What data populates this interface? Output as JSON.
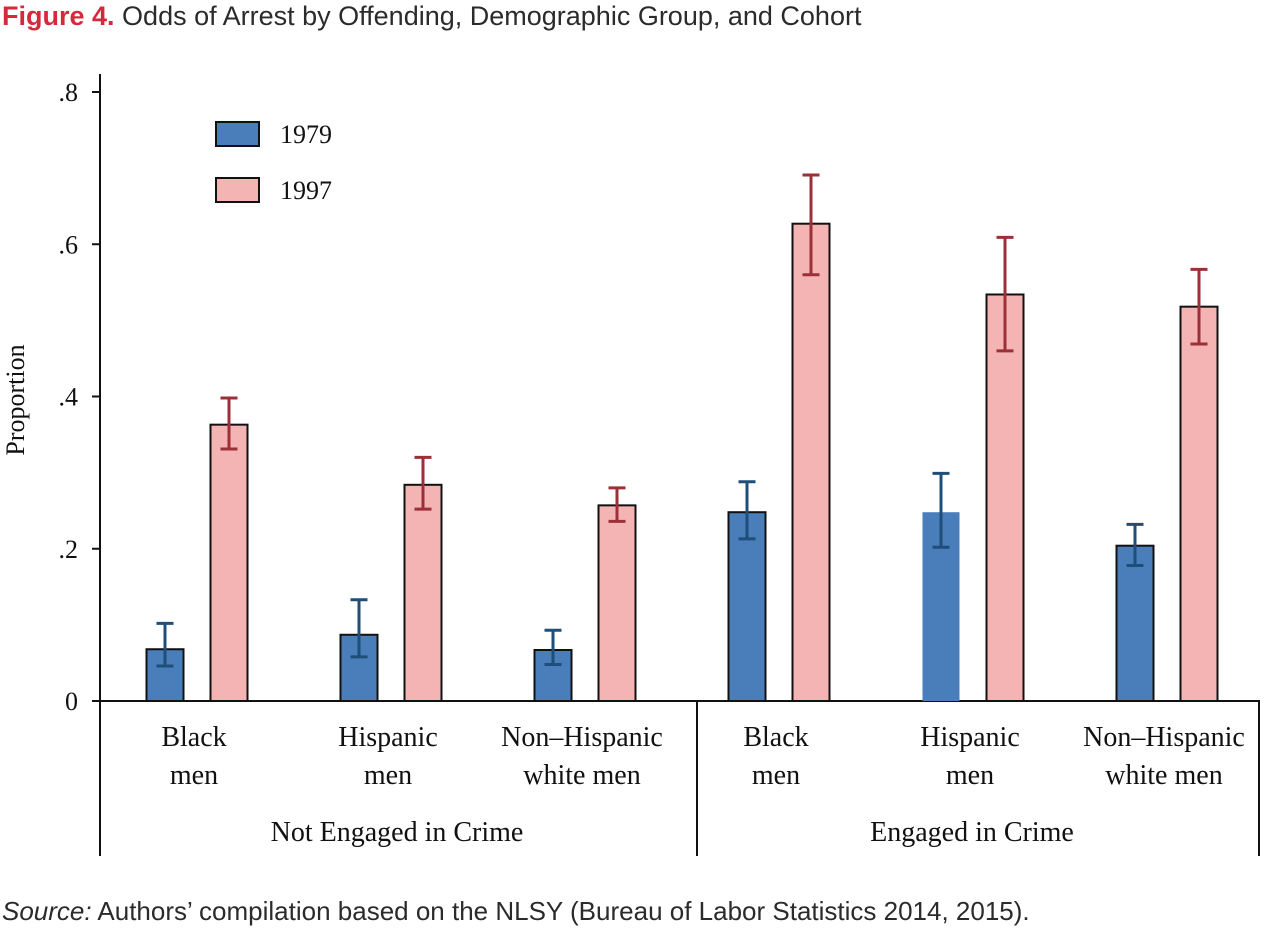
{
  "title": {
    "label": "Figure 4.",
    "text": "Odds of Arrest by Offending, Demographic Group, and Cohort"
  },
  "source": {
    "label": "Source:",
    "text": "Authors’ compilation based on the NLSY (Bureau of Labor Statistics 2014, 2015)."
  },
  "colors": {
    "series_1979_fill": "#4a7ebb",
    "series_1979_error": "#1f4e79",
    "series_1997_fill": "#f4b4b4",
    "series_1997_error": "#9b3039",
    "bar_stroke": "#111111"
  },
  "chart_data": {
    "type": "bar",
    "ylabel": "Proportion",
    "ylim": [
      0,
      0.8
    ],
    "yticks": [
      0,
      0.2,
      0.4,
      0.6,
      0.8
    ],
    "ytick_labels": [
      "0",
      ".2",
      ".4",
      ".6",
      ".8"
    ],
    "grid": false,
    "legend_position": "top-left",
    "groups": [
      {
        "label": "Not Engaged in Crime",
        "categories": [
          {
            "label_lines": [
              "Black",
              "men"
            ]
          },
          {
            "label_lines": [
              "Hispanic",
              "men"
            ]
          },
          {
            "label_lines": [
              "Non–Hispanic",
              "white men"
            ]
          }
        ]
      },
      {
        "label": "Engaged in Crime",
        "categories": [
          {
            "label_lines": [
              "Black",
              "men"
            ]
          },
          {
            "label_lines": [
              "Hispanic",
              "men"
            ]
          },
          {
            "label_lines": [
              "Non–Hispanic",
              "white men"
            ]
          }
        ]
      }
    ],
    "series": [
      {
        "name": "1979",
        "values": [
          0.068,
          0.087,
          0.067,
          0.248,
          0.248,
          0.204
        ],
        "error_low": [
          0.046,
          0.058,
          0.048,
          0.213,
          0.202,
          0.178
        ],
        "error_high": [
          0.102,
          0.133,
          0.093,
          0.288,
          0.299,
          0.232
        ]
      },
      {
        "name": "1997",
        "values": [
          0.363,
          0.284,
          0.257,
          0.627,
          0.534,
          0.518
        ],
        "error_low": [
          0.331,
          0.252,
          0.236,
          0.56,
          0.46,
          0.469
        ],
        "error_high": [
          0.398,
          0.32,
          0.28,
          0.691,
          0.609,
          0.567
        ]
      }
    ]
  }
}
